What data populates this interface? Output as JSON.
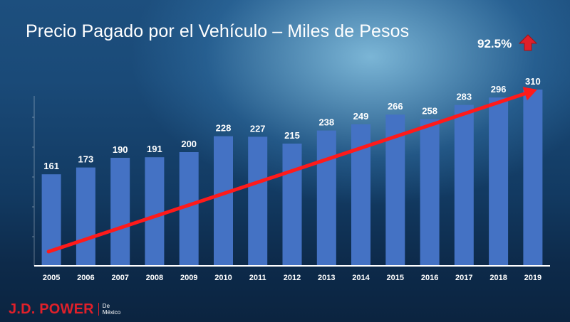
{
  "title": "Precio Pagado por el Vehículo – Miles de Pesos",
  "growth": {
    "value": "92.5%",
    "icon": "up-arrow-icon",
    "color": "#e0202a"
  },
  "logo": {
    "main": "J.D. POWER",
    "sub_line1": "De",
    "sub_line2": "México",
    "color": "#e0202a"
  },
  "chart_data": {
    "type": "bar",
    "categories": [
      "2005",
      "2006",
      "2007",
      "2008",
      "2009",
      "2010",
      "2011",
      "2012",
      "2013",
      "2014",
      "2015",
      "2016",
      "2017",
      "2018",
      "2019"
    ],
    "values": [
      161,
      173,
      190,
      191,
      200,
      228,
      227,
      215,
      238,
      249,
      266,
      258,
      283,
      296,
      310
    ],
    "title": "Precio Pagado por el Vehículo – Miles de Pesos",
    "xlabel": "",
    "ylabel": "",
    "ylim": [
      0,
      330
    ],
    "bar_color": "#4472c4",
    "trend_line": {
      "color": "#ff1a1a",
      "from_value": 25,
      "to_value": 310
    },
    "grid": false,
    "legend": "none"
  }
}
